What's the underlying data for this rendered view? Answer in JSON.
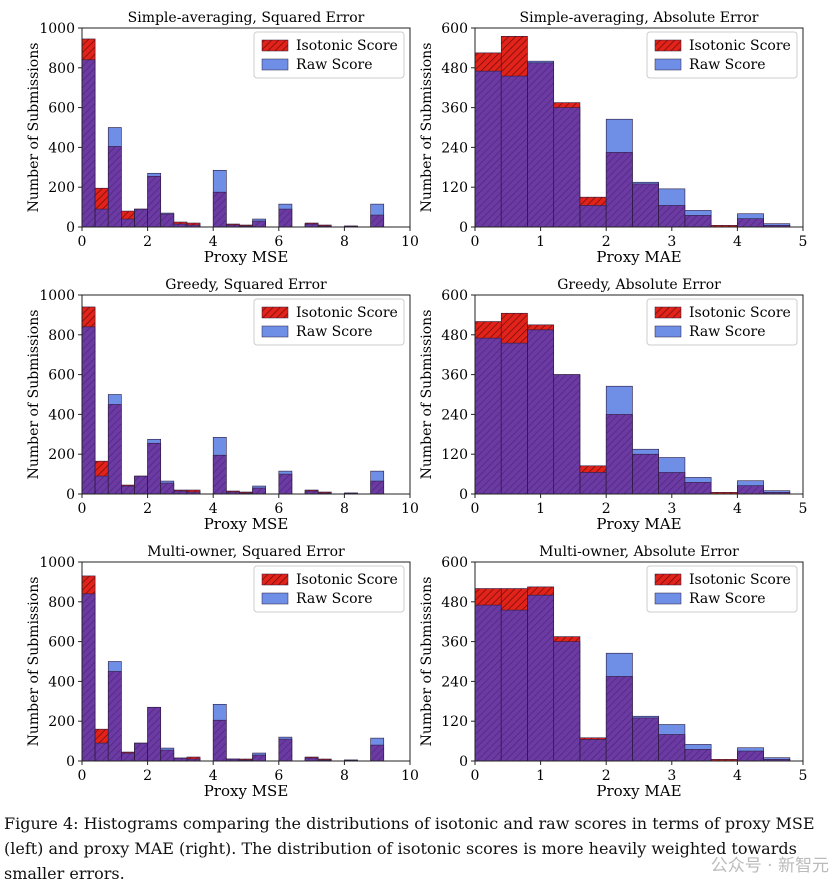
{
  "chart_data": [
    {
      "type": "bar",
      "title": "Simple-averaging, Squared Error",
      "xlabel": "Proxy MSE",
      "ylabel": "Number of Submissions",
      "xlim": [
        0,
        10
      ],
      "ylim": [
        0,
        1000
      ],
      "xticks": [
        0,
        2,
        4,
        6,
        8,
        10
      ],
      "yticks": [
        0,
        200,
        400,
        600,
        800,
        1000
      ],
      "bin_width": 0.4,
      "bins": [
        0,
        0.4,
        0.8,
        1.2,
        1.6,
        2.0,
        2.4,
        2.8,
        3.2,
        3.6,
        4.0,
        4.4,
        4.8,
        5.2,
        5.6,
        6.0,
        6.4,
        6.8,
        7.2,
        7.6,
        8.0,
        8.4,
        8.8
      ],
      "legend": "top-right",
      "series": [
        {
          "name": "Isotonic Score",
          "values": [
            945,
            195,
            405,
            80,
            90,
            255,
            65,
            25,
            20,
            0,
            175,
            15,
            10,
            30,
            0,
            90,
            0,
            20,
            10,
            0,
            5,
            0,
            60
          ]
        },
        {
          "name": "Raw Score",
          "values": [
            840,
            90,
            500,
            40,
            90,
            270,
            70,
            15,
            10,
            0,
            285,
            10,
            5,
            40,
            0,
            115,
            0,
            15,
            5,
            0,
            5,
            0,
            115
          ]
        }
      ]
    },
    {
      "type": "bar",
      "title": "Simple-averaging, Absolute Error",
      "xlabel": "Proxy MAE",
      "ylabel": "Number of Submissions",
      "xlim": [
        0,
        5
      ],
      "ylim": [
        0,
        600
      ],
      "xticks": [
        0,
        1,
        2,
        3,
        4,
        5
      ],
      "yticks": [
        0,
        120,
        240,
        360,
        480,
        600
      ],
      "bin_width": 0.4,
      "bins": [
        0,
        0.4,
        0.8,
        1.2,
        1.6,
        2.0,
        2.4,
        2.8,
        3.2,
        3.6,
        4.0,
        4.4
      ],
      "legend": "top-right",
      "series": [
        {
          "name": "Isotonic Score",
          "values": [
            525,
            575,
            495,
            375,
            90,
            225,
            130,
            65,
            35,
            5,
            25,
            5
          ]
        },
        {
          "name": "Raw Score",
          "values": [
            470,
            455,
            500,
            360,
            65,
            325,
            135,
            115,
            50,
            0,
            40,
            10
          ]
        }
      ]
    },
    {
      "type": "bar",
      "title": "Greedy, Squared Error",
      "xlabel": "Proxy MSE",
      "ylabel": "Number of Submissions",
      "xlim": [
        0,
        10
      ],
      "ylim": [
        0,
        1000
      ],
      "xticks": [
        0,
        2,
        4,
        6,
        8,
        10
      ],
      "yticks": [
        0,
        200,
        400,
        600,
        800,
        1000
      ],
      "bin_width": 0.4,
      "bins": [
        0,
        0.4,
        0.8,
        1.2,
        1.6,
        2.0,
        2.4,
        2.8,
        3.2,
        3.6,
        4.0,
        4.4,
        4.8,
        5.2,
        5.6,
        6.0,
        6.4,
        6.8,
        7.2,
        7.6,
        8.0,
        8.4,
        8.8
      ],
      "legend": "top-right",
      "series": [
        {
          "name": "Isotonic Score",
          "values": [
            940,
            165,
            450,
            45,
            90,
            255,
            55,
            20,
            20,
            0,
            195,
            15,
            10,
            30,
            0,
            100,
            0,
            20,
            10,
            0,
            5,
            0,
            65
          ]
        },
        {
          "name": "Raw Score",
          "values": [
            840,
            90,
            500,
            40,
            90,
            275,
            65,
            15,
            10,
            0,
            285,
            10,
            5,
            40,
            0,
            115,
            0,
            15,
            5,
            0,
            5,
            0,
            115
          ]
        }
      ]
    },
    {
      "type": "bar",
      "title": "Greedy, Absolute Error",
      "xlabel": "Proxy MAE",
      "ylabel": "Number of Submissions",
      "xlim": [
        0,
        5
      ],
      "ylim": [
        0,
        600
      ],
      "xticks": [
        0,
        1,
        2,
        3,
        4,
        5
      ],
      "yticks": [
        0,
        120,
        240,
        360,
        480,
        600
      ],
      "bin_width": 0.4,
      "bins": [
        0,
        0.4,
        0.8,
        1.2,
        1.6,
        2.0,
        2.4,
        2.8,
        3.2,
        3.6,
        4.0,
        4.4
      ],
      "legend": "top-right",
      "series": [
        {
          "name": "Isotonic Score",
          "values": [
            520,
            545,
            510,
            360,
            85,
            240,
            120,
            65,
            35,
            5,
            25,
            5
          ]
        },
        {
          "name": "Raw Score",
          "values": [
            470,
            455,
            495,
            360,
            65,
            325,
            135,
            110,
            50,
            0,
            40,
            10
          ]
        }
      ]
    },
    {
      "type": "bar",
      "title": "Multi-owner, Squared Error",
      "xlabel": "Proxy MSE",
      "ylabel": "Number of Submissions",
      "xlim": [
        0,
        10
      ],
      "ylim": [
        0,
        1000
      ],
      "xticks": [
        0,
        2,
        4,
        6,
        8,
        10
      ],
      "yticks": [
        0,
        200,
        400,
        600,
        800,
        1000
      ],
      "bin_width": 0.4,
      "bins": [
        0,
        0.4,
        0.8,
        1.2,
        1.6,
        2.0,
        2.4,
        2.8,
        3.2,
        3.6,
        4.0,
        4.4,
        4.8,
        5.2,
        5.6,
        6.0,
        6.4,
        6.8,
        7.2,
        7.6,
        8.0,
        8.4,
        8.8
      ],
      "legend": "top-right",
      "series": [
        {
          "name": "Isotonic Score",
          "values": [
            930,
            160,
            450,
            45,
            90,
            270,
            55,
            15,
            20,
            0,
            205,
            10,
            10,
            30,
            0,
            110,
            0,
            20,
            10,
            0,
            5,
            0,
            80
          ]
        },
        {
          "name": "Raw Score",
          "values": [
            840,
            90,
            500,
            40,
            90,
            270,
            65,
            15,
            10,
            0,
            285,
            10,
            5,
            40,
            0,
            120,
            0,
            15,
            5,
            0,
            5,
            0,
            115
          ]
        }
      ]
    },
    {
      "type": "bar",
      "title": "Multi-owner, Absolute Error",
      "xlabel": "Proxy MAE",
      "ylabel": "Number of Submissions",
      "xlim": [
        0,
        5
      ],
      "ylim": [
        0,
        600
      ],
      "xticks": [
        0,
        1,
        2,
        3,
        4,
        5
      ],
      "yticks": [
        0,
        120,
        240,
        360,
        480,
        600
      ],
      "bin_width": 0.4,
      "bins": [
        0,
        0.4,
        0.8,
        1.2,
        1.6,
        2.0,
        2.4,
        2.8,
        3.2,
        3.6,
        4.0,
        4.4
      ],
      "legend": "top-right",
      "series": [
        {
          "name": "Isotonic Score",
          "values": [
            520,
            520,
            525,
            375,
            70,
            255,
            130,
            80,
            35,
            5,
            30,
            5
          ]
        },
        {
          "name": "Raw Score",
          "values": [
            470,
            455,
            500,
            360,
            65,
            325,
            135,
            110,
            50,
            0,
            40,
            10
          ]
        }
      ]
    }
  ],
  "colors": {
    "isotonic_fill": "#e2231a",
    "raw_fill": "#6f8ee6",
    "overlap_fill": "#6b3aa3",
    "edge": "#2b1a3f"
  },
  "caption": "Figure 4: Histograms comparing the distributions of isotonic and raw scores in terms of proxy MSE (left) and proxy MAE (right). The distribution of isotonic scores is more heavily weighted towards smaller errors.",
  "watermark": "公众号 · 新智元"
}
